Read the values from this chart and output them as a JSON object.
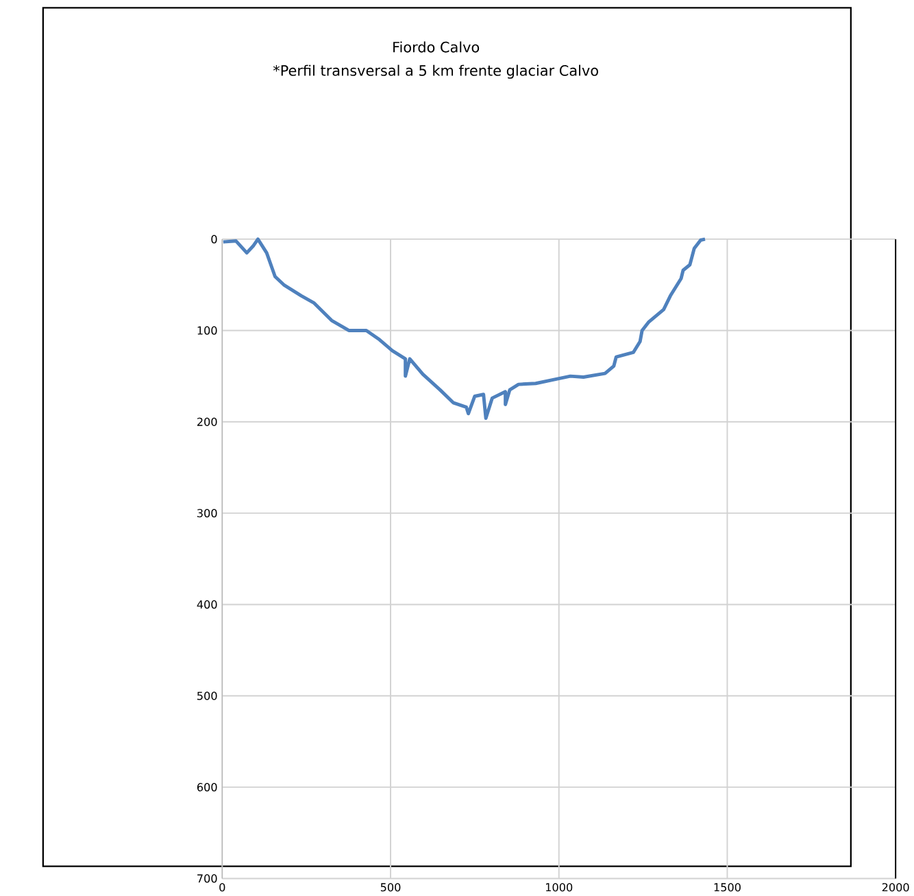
{
  "chart_data": {
    "type": "line",
    "title": "Fiordo Calvo",
    "subtitle": "*Perfil transversal a 5 km frente glaciar Calvo",
    "series": [
      {
        "color": "#4f81bd",
        "x": [
          3,
          41,
          73,
          93,
          106,
          132,
          157,
          183,
          235,
          273,
          325,
          376,
          428,
          467,
          505,
          544,
          544,
          557,
          596,
          647,
          686,
          725,
          731,
          750,
          776,
          783,
          802,
          841,
          841,
          854,
          880,
          931,
          995,
          1034,
          1073,
          1137,
          1163,
          1170,
          1221,
          1241,
          1247,
          1266,
          1311,
          1331,
          1363,
          1369,
          1389,
          1402,
          1421,
          1434
        ],
        "values": [
          3,
          2,
          15,
          7,
          0,
          15,
          41,
          50,
          62,
          70,
          89,
          100,
          100,
          110,
          122,
          131,
          150,
          131,
          148,
          165,
          179,
          184,
          191,
          172,
          170,
          196,
          174,
          167,
          181,
          165,
          159,
          158,
          153,
          150,
          151,
          147,
          139,
          129,
          124,
          112,
          100,
          91,
          77,
          62,
          43,
          34,
          28,
          10,
          1,
          0
        ]
      }
    ],
    "xlim": [
      0,
      2000
    ],
    "xticks": [
      0,
      500,
      1000,
      1500,
      2000
    ],
    "ylim": [
      700,
      0
    ],
    "yticks": [
      0,
      100,
      200,
      300,
      400,
      500,
      600,
      700
    ],
    "grid": true,
    "marker": "none",
    "line_style": "solid"
  }
}
